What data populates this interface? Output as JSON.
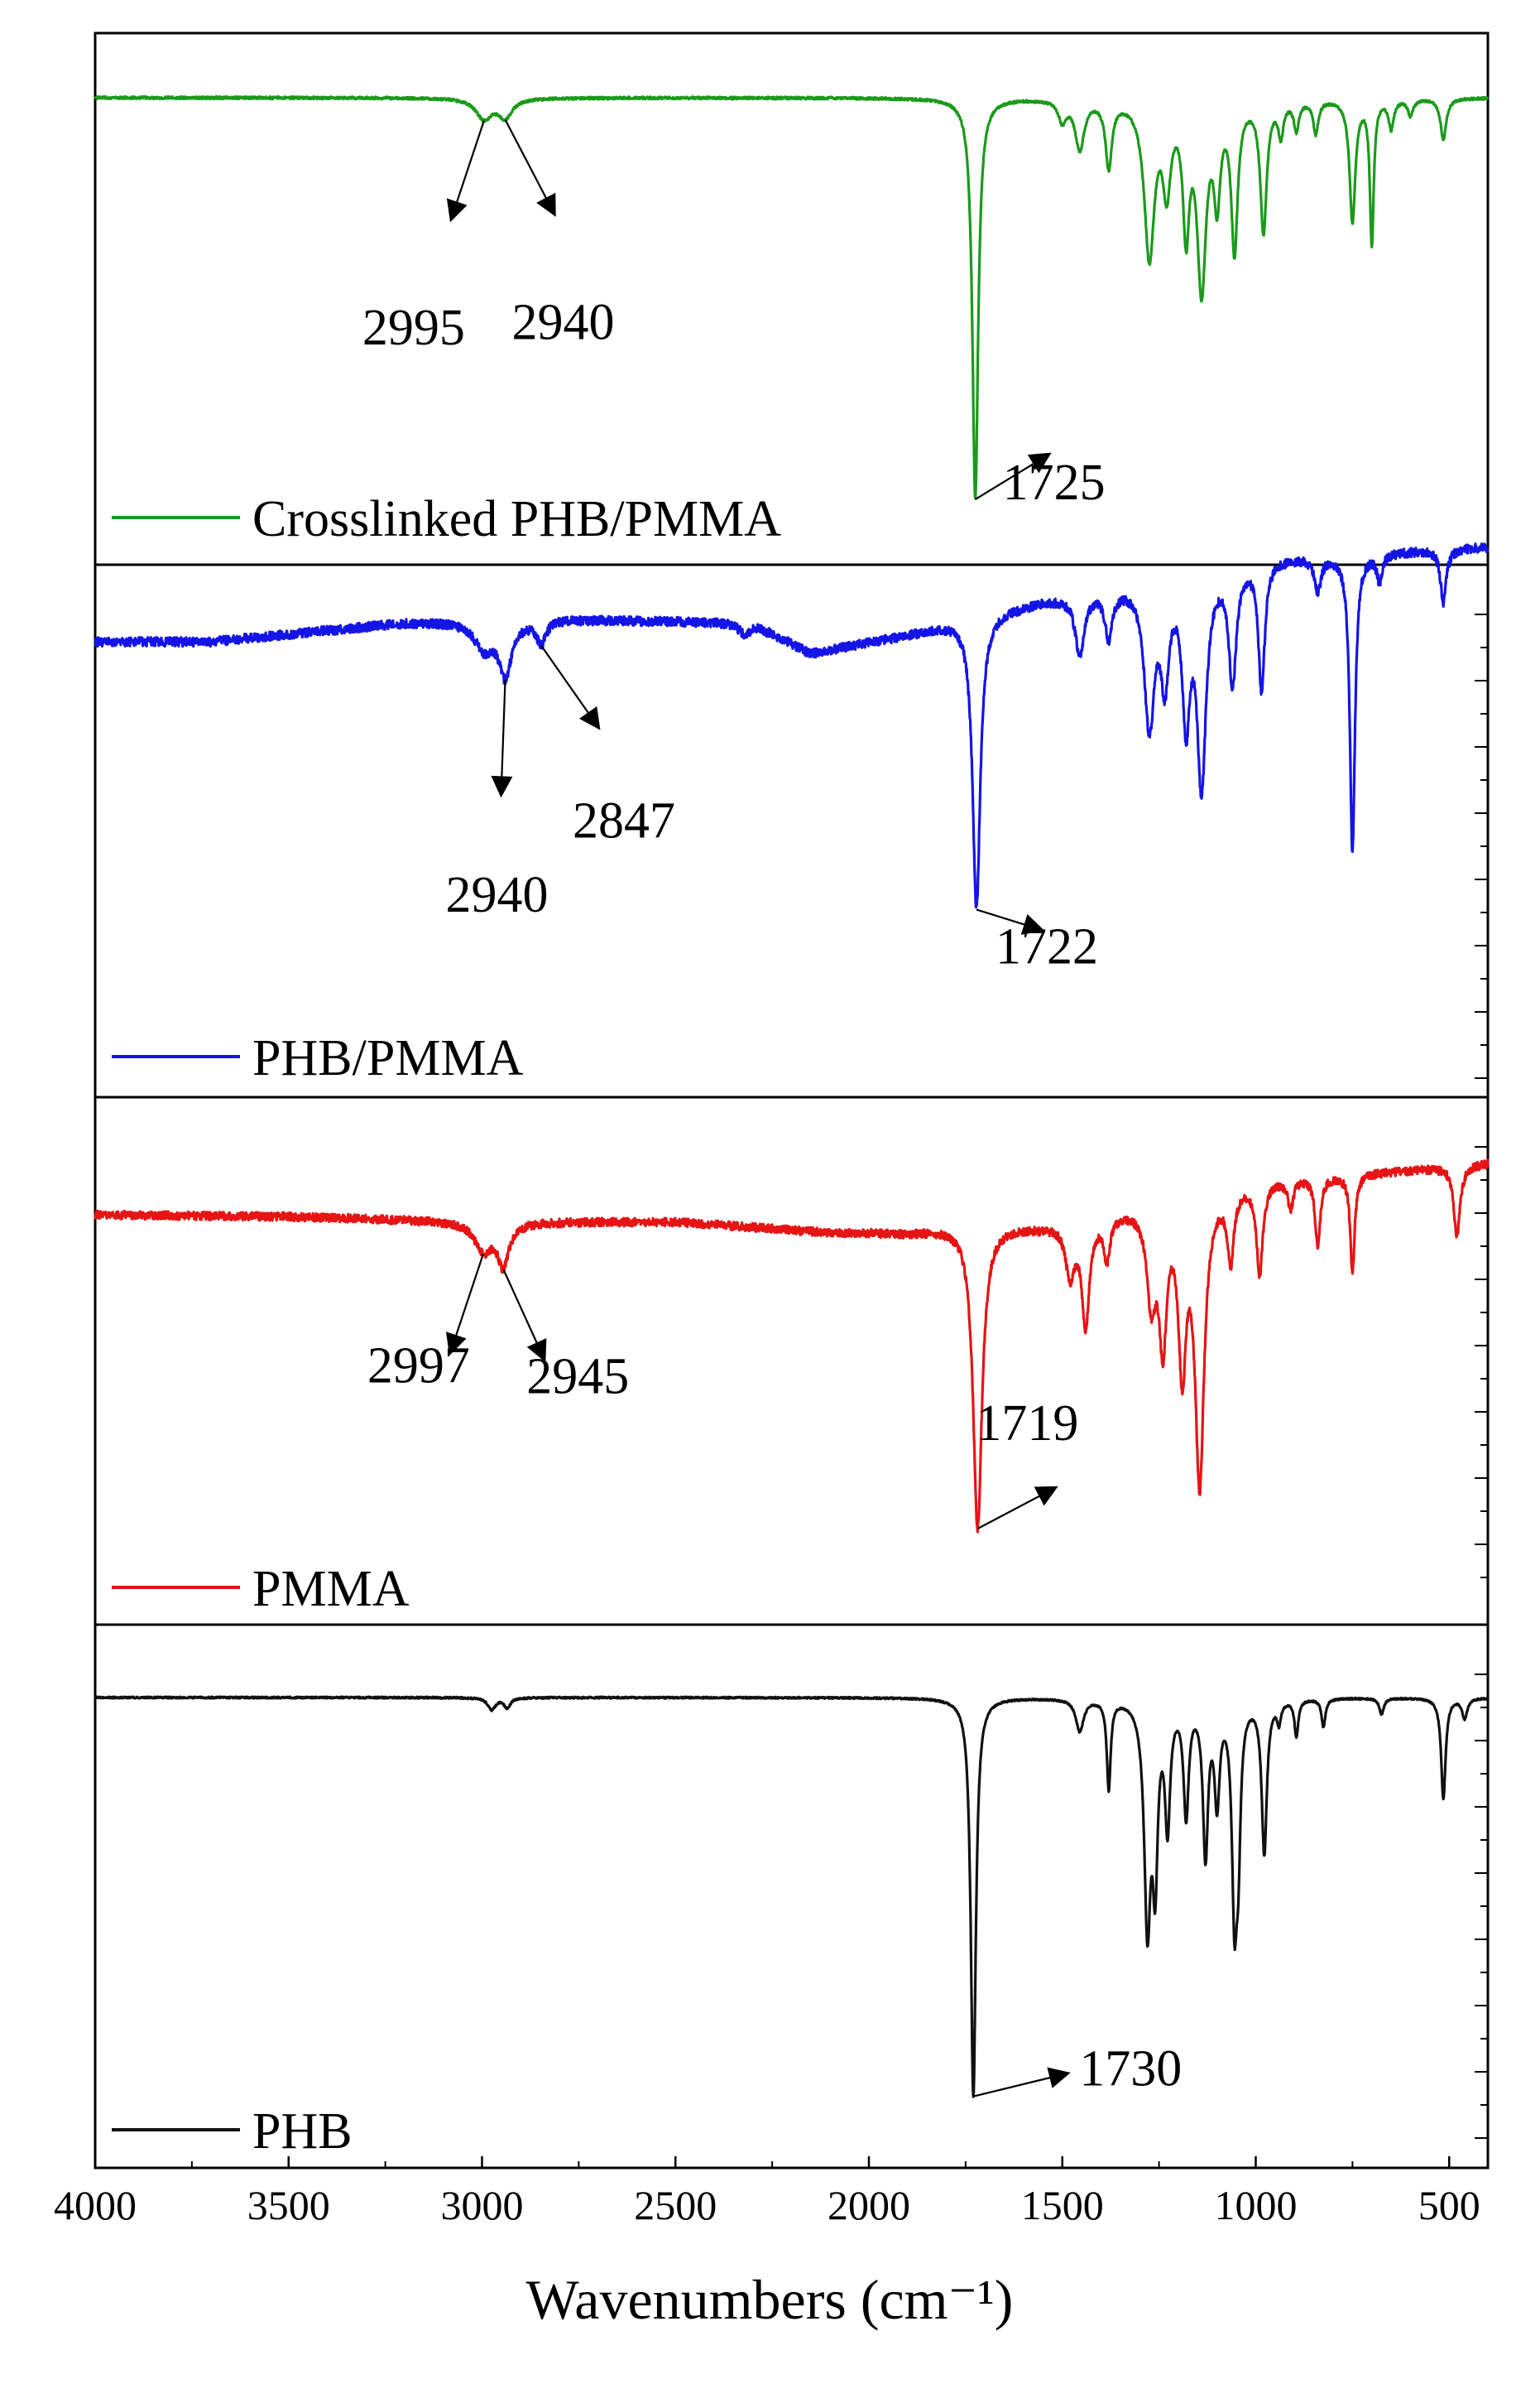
{
  "chart_data": {
    "type": "line",
    "title": "",
    "xlabel": "Wavenumbers (cm⁻¹)",
    "ylabel": "",
    "xlim": [
      4000,
      400
    ],
    "x_reversed": true,
    "xticks": [
      4000,
      3500,
      3000,
      2500,
      2000,
      1500,
      1000,
      500
    ],
    "grid": false,
    "legend_placement": "bottom-left of each panel",
    "series": [
      {
        "name": "Crosslinked PHB/PMMA",
        "color": "#1a9a1a",
        "baseline": 0.0,
        "noise": 0.003,
        "peaks": [
          {
            "x": 2995,
            "depth": 0.05,
            "width": 25
          },
          {
            "x": 2940,
            "depth": 0.045,
            "width": 22
          },
          {
            "x": 1725,
            "depth": 0.98,
            "width": 9
          },
          {
            "x": 1500,
            "depth": 0.05,
            "width": 12
          },
          {
            "x": 1455,
            "depth": 0.12,
            "width": 14
          },
          {
            "x": 1380,
            "depth": 0.16,
            "width": 10
          },
          {
            "x": 1275,
            "depth": 0.38,
            "width": 16
          },
          {
            "x": 1230,
            "depth": 0.2,
            "width": 12
          },
          {
            "x": 1180,
            "depth": 0.3,
            "width": 10
          },
          {
            "x": 1140,
            "depth": 0.45,
            "width": 14
          },
          {
            "x": 1100,
            "depth": 0.22,
            "width": 10
          },
          {
            "x": 1055,
            "depth": 0.36,
            "width": 10
          },
          {
            "x": 980,
            "depth": 0.32,
            "width": 10
          },
          {
            "x": 935,
            "depth": 0.08,
            "width": 8
          },
          {
            "x": 895,
            "depth": 0.07,
            "width": 8
          },
          {
            "x": 845,
            "depth": 0.08,
            "width": 8
          },
          {
            "x": 750,
            "depth": 0.3,
            "width": 9
          },
          {
            "x": 700,
            "depth": 0.35,
            "width": 6
          },
          {
            "x": 650,
            "depth": 0.07,
            "width": 8
          },
          {
            "x": 600,
            "depth": 0.04,
            "width": 8
          },
          {
            "x": 515,
            "depth": 0.1,
            "width": 9
          }
        ]
      },
      {
        "name": "PHB/PMMA",
        "color": "#1414e6",
        "baseline": 0.0,
        "noise": 0.012,
        "drift": [
          {
            "x": 4000,
            "y": 0.0
          },
          {
            "x": 3700,
            "y": 0.0
          },
          {
            "x": 3200,
            "y": 0.05
          },
          {
            "x": 2800,
            "y": 0.06
          },
          {
            "x": 2300,
            "y": 0.05
          },
          {
            "x": 2150,
            "y": -0.03
          },
          {
            "x": 1900,
            "y": 0.02
          },
          {
            "x": 1760,
            "y": 0.06
          },
          {
            "x": 1550,
            "y": 0.11
          },
          {
            "x": 1000,
            "y": 0.22
          },
          {
            "x": 400,
            "y": 0.25
          }
        ],
        "peaks": [
          {
            "x": 2995,
            "depth": 0.07,
            "width": 28
          },
          {
            "x": 2940,
            "depth": 0.14,
            "width": 20
          },
          {
            "x": 2847,
            "depth": 0.06,
            "width": 14
          },
          {
            "x": 2320,
            "depth": 0.03,
            "width": 20
          },
          {
            "x": 1722,
            "depth": 0.77,
            "width": 12
          },
          {
            "x": 1455,
            "depth": 0.16,
            "width": 14
          },
          {
            "x": 1380,
            "depth": 0.12,
            "width": 12
          },
          {
            "x": 1275,
            "depth": 0.38,
            "width": 16
          },
          {
            "x": 1235,
            "depth": 0.25,
            "width": 12
          },
          {
            "x": 1180,
            "depth": 0.36,
            "width": 12
          },
          {
            "x": 1140,
            "depth": 0.55,
            "width": 14
          },
          {
            "x": 1060,
            "depth": 0.3,
            "width": 12
          },
          {
            "x": 985,
            "depth": 0.34,
            "width": 10
          },
          {
            "x": 840,
            "depth": 0.09,
            "width": 10
          },
          {
            "x": 750,
            "depth": 0.78,
            "width": 8
          },
          {
            "x": 680,
            "depth": 0.07,
            "width": 8
          },
          {
            "x": 515,
            "depth": 0.14,
            "width": 9
          }
        ]
      },
      {
        "name": "PMMA",
        "color": "#e61414",
        "baseline": 0.0,
        "noise": 0.012,
        "drift": [
          {
            "x": 4000,
            "y": 0.0
          },
          {
            "x": 3500,
            "y": -0.005
          },
          {
            "x": 3000,
            "y": -0.02
          },
          {
            "x": 2500,
            "y": -0.02
          },
          {
            "x": 2100,
            "y": -0.05
          },
          {
            "x": 1900,
            "y": -0.05
          },
          {
            "x": 1760,
            "y": -0.03
          },
          {
            "x": 1550,
            "y": -0.03
          },
          {
            "x": 1000,
            "y": 0.1
          },
          {
            "x": 600,
            "y": 0.13
          },
          {
            "x": 400,
            "y": 0.15
          }
        ],
        "peaks": [
          {
            "x": 2997,
            "depth": 0.08,
            "width": 26
          },
          {
            "x": 2945,
            "depth": 0.12,
            "width": 18
          },
          {
            "x": 1719,
            "depth": 0.87,
            "width": 14
          },
          {
            "x": 1480,
            "depth": 0.15,
            "width": 14
          },
          {
            "x": 1440,
            "depth": 0.3,
            "width": 12
          },
          {
            "x": 1385,
            "depth": 0.12,
            "width": 10
          },
          {
            "x": 1270,
            "depth": 0.26,
            "width": 14
          },
          {
            "x": 1240,
            "depth": 0.38,
            "width": 12
          },
          {
            "x": 1190,
            "depth": 0.46,
            "width": 12
          },
          {
            "x": 1145,
            "depth": 0.82,
            "width": 14
          },
          {
            "x": 1065,
            "depth": 0.2,
            "width": 10
          },
          {
            "x": 990,
            "depth": 0.26,
            "width": 10
          },
          {
            "x": 910,
            "depth": 0.08,
            "width": 8
          },
          {
            "x": 840,
            "depth": 0.2,
            "width": 8
          },
          {
            "x": 750,
            "depth": 0.28,
            "width": 7
          },
          {
            "x": 480,
            "depth": 0.2,
            "width": 10
          }
        ]
      },
      {
        "name": "PHB",
        "color": "#111111",
        "baseline": 0.0,
        "noise": 0.002,
        "peaks": [
          {
            "x": 2975,
            "depth": 0.03,
            "width": 12
          },
          {
            "x": 2935,
            "depth": 0.025,
            "width": 10
          },
          {
            "x": 1730,
            "depth": 0.99,
            "width": 8
          },
          {
            "x": 1455,
            "depth": 0.08,
            "width": 12
          },
          {
            "x": 1380,
            "depth": 0.22,
            "width": 6
          },
          {
            "x": 1280,
            "depth": 0.55,
            "width": 10
          },
          {
            "x": 1260,
            "depth": 0.4,
            "width": 8
          },
          {
            "x": 1228,
            "depth": 0.3,
            "width": 8
          },
          {
            "x": 1180,
            "depth": 0.28,
            "width": 8
          },
          {
            "x": 1130,
            "depth": 0.38,
            "width": 8
          },
          {
            "x": 1100,
            "depth": 0.24,
            "width": 8
          },
          {
            "x": 1055,
            "depth": 0.5,
            "width": 8
          },
          {
            "x": 1045,
            "depth": 0.3,
            "width": 7
          },
          {
            "x": 978,
            "depth": 0.38,
            "width": 8
          },
          {
            "x": 940,
            "depth": 0.05,
            "width": 6
          },
          {
            "x": 895,
            "depth": 0.09,
            "width": 6
          },
          {
            "x": 825,
            "depth": 0.07,
            "width": 6
          },
          {
            "x": 675,
            "depth": 0.04,
            "width": 7
          },
          {
            "x": 515,
            "depth": 0.25,
            "width": 7
          },
          {
            "x": 460,
            "depth": 0.05,
            "width": 8
          }
        ]
      }
    ],
    "annotations": [
      {
        "series": 0,
        "text": "2995",
        "x": 2995
      },
      {
        "series": 0,
        "text": "2940",
        "x": 2940
      },
      {
        "series": 0,
        "text": "1725",
        "x": 1725
      },
      {
        "series": 1,
        "text": "2940",
        "x": 2940
      },
      {
        "series": 1,
        "text": "2847",
        "x": 2847
      },
      {
        "series": 1,
        "text": "1722",
        "x": 1722
      },
      {
        "series": 2,
        "text": "2997",
        "x": 2997
      },
      {
        "series": 2,
        "text": "2945",
        "x": 2945
      },
      {
        "series": 2,
        "text": "1719",
        "x": 1719
      },
      {
        "series": 3,
        "text": "1730",
        "x": 1730
      }
    ]
  }
}
